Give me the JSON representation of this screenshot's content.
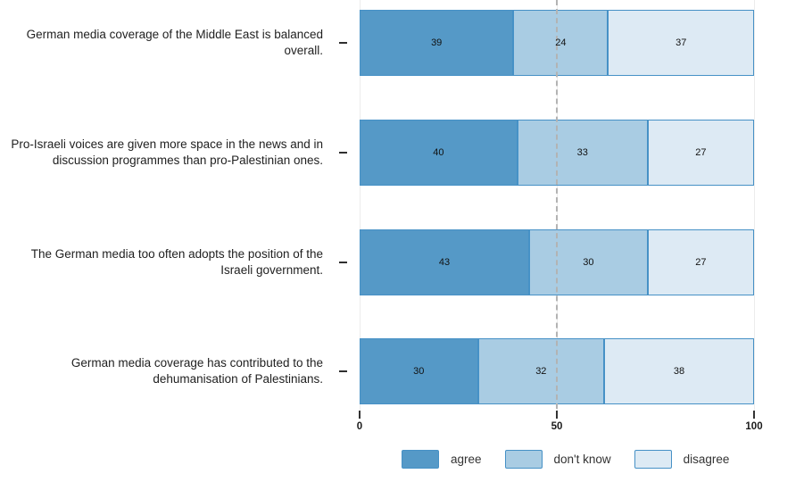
{
  "chart_data": {
    "type": "bar",
    "orientation": "horizontal",
    "stacked": true,
    "title": "",
    "categories": [
      "German media coverage of the Middle East is balanced overall.",
      "Pro-Israeli voices are given more space in the news and in discussion programmes than pro-Palestinian ones.",
      "The German media too often adopts the position of the Israeli government.",
      "German media coverage has contributed to the dehumanisation of Palestinians."
    ],
    "series": [
      {
        "name": "agree",
        "color": "#5599c7",
        "values": [
          39,
          40,
          43,
          30
        ]
      },
      {
        "name": "don't know",
        "color": "#a9cce3",
        "values": [
          24,
          33,
          30,
          32
        ]
      },
      {
        "name": "disagree",
        "color": "#ddeaf4",
        "values": [
          37,
          27,
          27,
          38
        ]
      }
    ],
    "x_axis": {
      "range": [
        0,
        100
      ],
      "ticks": [
        0,
        50,
        100
      ],
      "tick_labels": [
        "0",
        "50",
        "100"
      ]
    },
    "reference_line_x": 50,
    "legend": {
      "position": "bottom",
      "entries": [
        "agree",
        "don't know",
        "disagree"
      ]
    },
    "grid": "vertical-faint",
    "colors": {
      "segment_border": "#4691c6",
      "reference_line": "#b3b3b3",
      "gridline": "#ececec",
      "axis_tick": "#333333",
      "text": "#1f1f1f"
    }
  }
}
